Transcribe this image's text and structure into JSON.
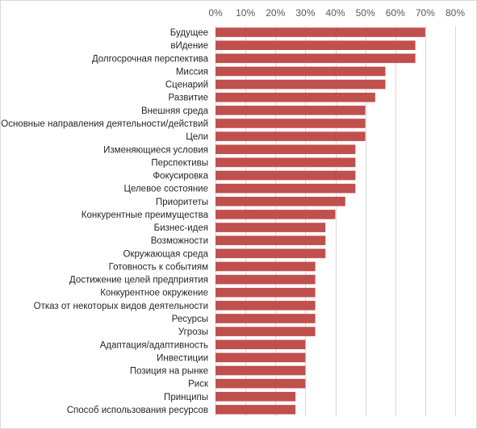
{
  "chart_data": {
    "type": "bar",
    "orientation": "horizontal",
    "title": "",
    "xlabel": "",
    "ylabel": "",
    "xlim": [
      0,
      0.8
    ],
    "x_tick_values": [
      0,
      0.1,
      0.2,
      0.3,
      0.4,
      0.5,
      0.6,
      0.7,
      0.8
    ],
    "x_tick_labels": [
      "0%",
      "10%",
      "20%",
      "30%",
      "40%",
      "50%",
      "60%",
      "70%",
      "80%"
    ],
    "x_axis_position": "top",
    "grid": true,
    "legend": "none",
    "bar_color": "#c0504d",
    "categories": [
      "Будущее",
      "вИдение",
      "Долгосрочная перспектива",
      "Миссия",
      "Сценарий",
      "Развитие",
      "Внешняя среда",
      "Основные направления деятельности/действий",
      "Цели",
      "Изменяющиеся условия",
      "Перспективы",
      "Фокусировка",
      "Целевое состояние",
      "Приоритеты",
      "Конкурентные преимущества",
      "Бизнес-идея",
      "Возможности",
      "Окружающая среда",
      "Готовность к событиям",
      "Достижение целей предприятия",
      "Конкурентное окружение",
      "Отказ от некоторых видов деятельности",
      "Ресурсы",
      "Угрозы",
      "Адаптация/адаптивность",
      "Инвестиции",
      "Позиция на рынке",
      "Риск",
      "Принципы",
      "Способ использования ресурсов"
    ],
    "values": [
      0.7,
      0.667,
      0.667,
      0.567,
      0.567,
      0.533,
      0.5,
      0.5,
      0.5,
      0.467,
      0.467,
      0.467,
      0.467,
      0.433,
      0.4,
      0.367,
      0.367,
      0.367,
      0.333,
      0.333,
      0.333,
      0.333,
      0.333,
      0.333,
      0.3,
      0.3,
      0.3,
      0.3,
      0.267,
      0.267
    ]
  }
}
